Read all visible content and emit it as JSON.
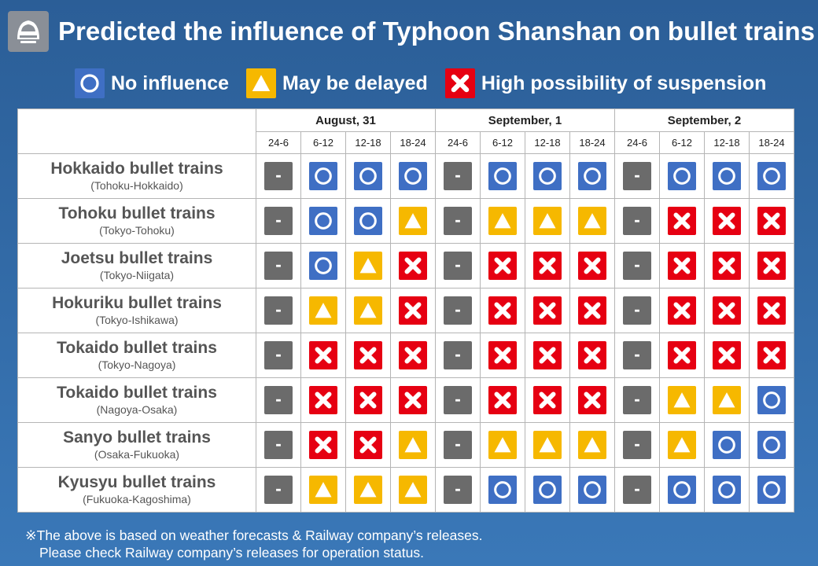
{
  "header": {
    "title": "Predicted the influence of Typhoon Shanshan on bullet trains",
    "logo_icon": "bullet-train-icon"
  },
  "legend": [
    {
      "symbol": "o",
      "label": "No influence"
    },
    {
      "symbol": "t",
      "label": "May be delayed"
    },
    {
      "symbol": "x",
      "label": "High possibility of suspension"
    }
  ],
  "symbols": {
    "o": {
      "icon": "circle-icon",
      "color": "#3f6fc4",
      "meaning": "No influence"
    },
    "t": {
      "icon": "triangle-icon",
      "color": "#f6b800",
      "meaning": "May be delayed"
    },
    "x": {
      "icon": "cross-icon",
      "color": "#e60012",
      "meaning": "High possibility of suspension"
    },
    "-": {
      "icon": "dash-icon",
      "color": "#6b6b6b",
      "meaning": ""
    }
  },
  "dates": [
    "August, 31",
    "September, 1",
    "September, 2"
  ],
  "time_slots": [
    "24-6",
    "6-12",
    "12-18",
    "18-24"
  ],
  "rows": [
    {
      "name": "Hokkaido bullet trains",
      "route": "(Tohoku-Hokkaido)",
      "status": [
        "-",
        "o",
        "o",
        "o",
        "-",
        "o",
        "o",
        "o",
        "-",
        "o",
        "o",
        "o"
      ]
    },
    {
      "name": "Tohoku bullet trains",
      "route": "(Tokyo-Tohoku)",
      "status": [
        "-",
        "o",
        "o",
        "t",
        "-",
        "t",
        "t",
        "t",
        "-",
        "x",
        "x",
        "x"
      ]
    },
    {
      "name": "Joetsu bullet trains",
      "route": "(Tokyo-Niigata)",
      "status": [
        "-",
        "o",
        "t",
        "x",
        "-",
        "x",
        "x",
        "x",
        "-",
        "x",
        "x",
        "x"
      ]
    },
    {
      "name": "Hokuriku bullet trains",
      "route": "(Tokyo-Ishikawa)",
      "status": [
        "-",
        "t",
        "t",
        "x",
        "-",
        "x",
        "x",
        "x",
        "-",
        "x",
        "x",
        "x"
      ]
    },
    {
      "name": "Tokaido bullet trains",
      "route": "(Tokyo-Nagoya)",
      "status": [
        "-",
        "x",
        "x",
        "x",
        "-",
        "x",
        "x",
        "x",
        "-",
        "x",
        "x",
        "x"
      ]
    },
    {
      "name": "Tokaido bullet trains",
      "route": "(Nagoya-Osaka)",
      "status": [
        "-",
        "x",
        "x",
        "x",
        "-",
        "x",
        "x",
        "x",
        "-",
        "t",
        "t",
        "o"
      ]
    },
    {
      "name": "Sanyo bullet trains",
      "route": "(Osaka-Fukuoka)",
      "status": [
        "-",
        "x",
        "x",
        "t",
        "-",
        "t",
        "t",
        "t",
        "-",
        "t",
        "o",
        "o"
      ]
    },
    {
      "name": "Kyusyu bullet trains",
      "route": "(Fukuoka-Kagoshima)",
      "status": [
        "-",
        "t",
        "t",
        "t",
        "-",
        "o",
        "o",
        "o",
        "-",
        "o",
        "o",
        "o"
      ]
    }
  ],
  "footnote": {
    "line1": "※The above is based on weather forecasts & Railway company’s releases.",
    "line2": "Please check Railway company’s releases for operation status."
  }
}
